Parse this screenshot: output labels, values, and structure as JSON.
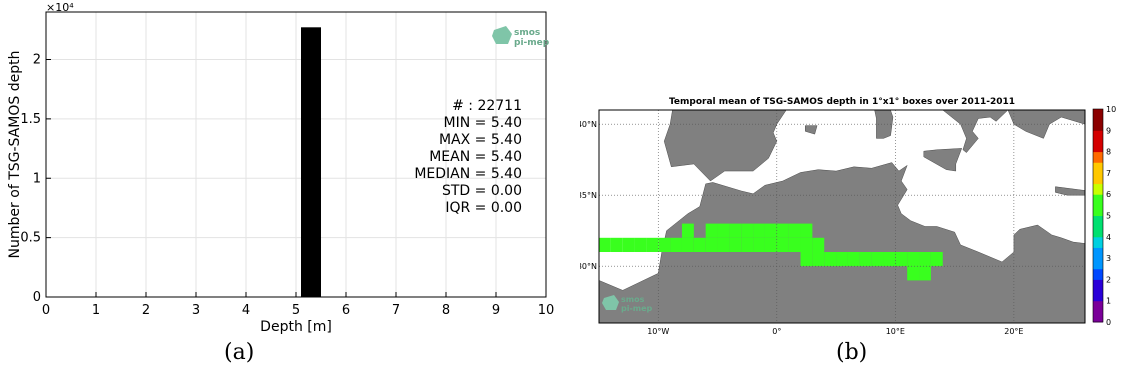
{
  "chart_data": [
    {
      "type": "bar",
      "title": "",
      "xlabel": "Depth [m]",
      "ylabel": "Number of TSG-SAMOS depth",
      "xlim": [
        0,
        10
      ],
      "ylim": [
        0,
        24000
      ],
      "x_ticks": [
        "0",
        "1",
        "2",
        "3",
        "4",
        "5",
        "6",
        "7",
        "8",
        "9",
        "10"
      ],
      "y_ticks": [
        "0",
        "0.5",
        "1",
        "1.5",
        "2"
      ],
      "y_multiplier": "×10⁴",
      "grid": true,
      "bins": [
        {
          "x_start": 5.1,
          "x_end": 5.5,
          "count": 22711
        }
      ],
      "bar_color": "#000000",
      "stats": [
        {
          "label": "# :",
          "value": "22711"
        },
        {
          "label": "MIN =",
          "value": "5.40"
        },
        {
          "label": "MAX =",
          "value": " 5.40"
        },
        {
          "label": "MEAN =",
          "value": "5.40"
        },
        {
          "label": "MEDIAN =",
          "value": "5.40"
        },
        {
          "label": "STD =",
          "value": "0.00"
        },
        {
          "label": "IQR =",
          "value": "0.00"
        }
      ],
      "logo_text": [
        "smos",
        "pi-mep"
      ],
      "caption": "(a)"
    },
    {
      "type": "heatmap",
      "title": "Temporal mean of TSG-SAMOS depth in 1°x1° boxes over 2011-2011",
      "lon_range": [
        -15,
        26
      ],
      "lat_range": [
        26,
        41
      ],
      "x_ticks": [
        "10°W",
        "0°",
        "10°E",
        "20°E"
      ],
      "y_ticks": [
        "40°N",
        "35°N",
        "30°N"
      ],
      "colorbar_ticks": [
        "0",
        "1",
        "2",
        "3",
        "4",
        "5",
        "6",
        "7",
        "8",
        "9",
        "10"
      ],
      "colorbar_range": [
        0,
        10
      ],
      "land_color": "#808080",
      "sea_color": "#ffffff",
      "cell_value": 5.4,
      "cell_color": "#39ff1e",
      "cells": [
        [
          -15,
          31
        ],
        [
          -14,
          31
        ],
        [
          -13,
          31
        ],
        [
          -12,
          31
        ],
        [
          -11,
          31
        ],
        [
          -10,
          31
        ],
        [
          -9,
          31
        ],
        [
          -8,
          31
        ],
        [
          -7,
          31
        ],
        [
          -8,
          32
        ],
        [
          -6,
          31
        ],
        [
          -6,
          32
        ],
        [
          -5,
          31
        ],
        [
          -5,
          32
        ],
        [
          -4,
          31
        ],
        [
          -4,
          32
        ],
        [
          -3,
          31
        ],
        [
          -3,
          32
        ],
        [
          -2,
          31
        ],
        [
          -2,
          32
        ],
        [
          -1,
          31
        ],
        [
          -1,
          32
        ],
        [
          0,
          31
        ],
        [
          0,
          32
        ],
        [
          1,
          31
        ],
        [
          1,
          32
        ],
        [
          2,
          31
        ],
        [
          2,
          32
        ],
        [
          2,
          30
        ],
        [
          3,
          30
        ],
        [
          3,
          31
        ],
        [
          4,
          30
        ],
        [
          5,
          30
        ],
        [
          6,
          30
        ],
        [
          7,
          30
        ],
        [
          8,
          30
        ],
        [
          9,
          30
        ],
        [
          10,
          30
        ],
        [
          11,
          30
        ],
        [
          12,
          30
        ],
        [
          11,
          29
        ],
        [
          12,
          29
        ],
        [
          13,
          30
        ]
      ],
      "logo_text": [
        "smos",
        "pi-mep"
      ],
      "caption": "(b)"
    }
  ]
}
